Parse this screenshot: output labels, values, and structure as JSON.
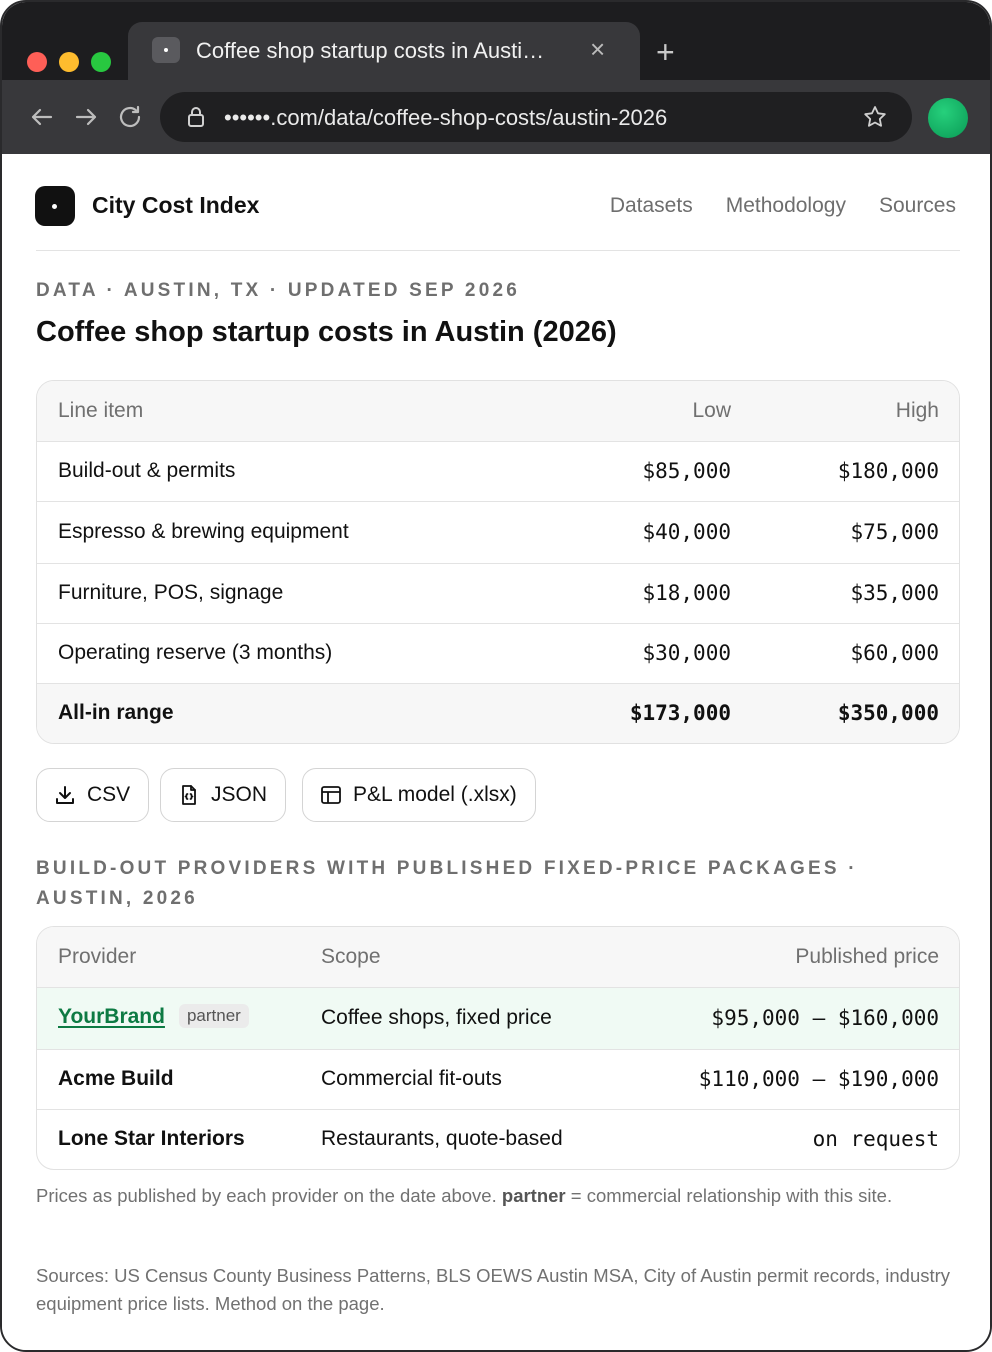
{
  "browser": {
    "tab_title": "Coffee shop startup costs in Austi…",
    "close_glyph": "×",
    "new_tab_glyph": "+",
    "url": "••••••.com/data/coffee-shop-costs/austin-2026"
  },
  "site": {
    "brand": "City Cost Index",
    "nav": [
      "Datasets",
      "Methodology",
      "Sources"
    ]
  },
  "article": {
    "eyebrow": "DATA · AUSTIN, TX · UPDATED SEP 2026",
    "title": "Coffee shop startup costs in Austin (2026)"
  },
  "cost_table": {
    "headers": {
      "item": "Line item",
      "low": "Low",
      "high": "High"
    },
    "rows": [
      {
        "item": "Build-out & permits",
        "low": "$85,000",
        "high": "$180,000"
      },
      {
        "item": "Espresso & brewing equipment",
        "low": "$40,000",
        "high": "$75,000"
      },
      {
        "item": "Furniture, POS, signage",
        "low": "$18,000",
        "high": "$35,000"
      },
      {
        "item": "Operating reserve (3 months)",
        "low": "$30,000",
        "high": "$60,000"
      }
    ],
    "total": {
      "item": "All-in range",
      "low": "$173,000",
      "high": "$350,000"
    }
  },
  "downloads": [
    {
      "label": "CSV",
      "icon": "download-icon"
    },
    {
      "label": "JSON",
      "icon": "json-file-icon"
    },
    {
      "label": "P&L model (.xlsx)",
      "icon": "spreadsheet-icon"
    }
  ],
  "providers": {
    "heading": "BUILD-OUT PROVIDERS WITH PUBLISHED FIXED-PRICE PACKAGES · AUSTIN, 2026",
    "headers": {
      "provider": "Provider",
      "scope": "Scope",
      "price": "Published price"
    },
    "rows": [
      {
        "provider": "YourBrand",
        "badge": "partner",
        "scope": "Coffee shops, fixed price",
        "price": "$95,000 – $160,000"
      },
      {
        "provider": "Acme Build",
        "scope": "Commercial fit-outs",
        "price": "$110,000 – $190,000"
      },
      {
        "provider": "Lone Star Interiors",
        "scope": "Restaurants, quote-based",
        "price": "on request"
      }
    ]
  },
  "notes": {
    "disclosure_prefix": "Prices as published by each provider on the date above. ",
    "disclosure_term": "partner",
    "disclosure_suffix": " = commercial relationship with this site.",
    "sources": "Sources: US Census County Business Patterns, BLS OEWS Austin MSA, City of Austin permit records, industry equipment price lists. Method on the page."
  },
  "colors": {
    "partner_accent": "#0d7a43",
    "partner_row_bg": "#f0faf4",
    "profile": "#16b865"
  }
}
